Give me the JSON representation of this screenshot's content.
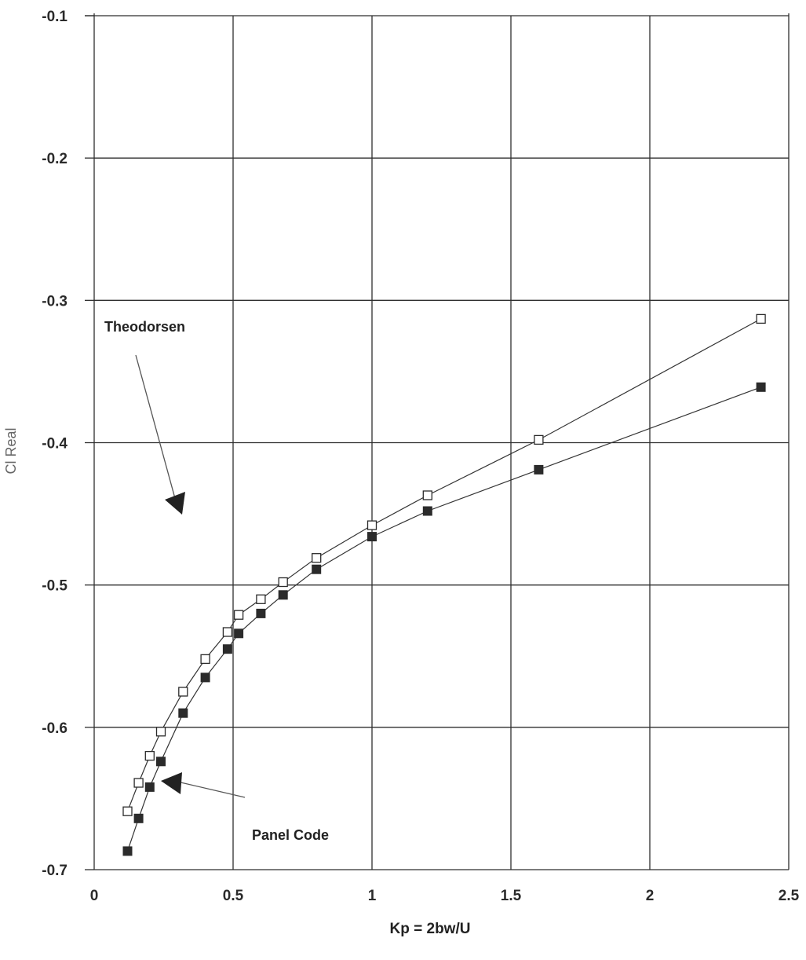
{
  "chart_data": {
    "type": "line",
    "title": "",
    "xlabel": "Kp = 2bw/U",
    "ylabel": "Cl Real",
    "xlim": [
      0,
      2.5
    ],
    "ylim": [
      -0.7,
      -0.1
    ],
    "x_ticks": [
      "0",
      "0.5",
      "1",
      "1.5",
      "2",
      "2.5"
    ],
    "y_ticks": [
      "-0.1",
      "-0.2",
      "-0.3",
      "-0.4",
      "-0.5",
      "-0.6",
      "-0.7"
    ],
    "x_tick_values": [
      0,
      0.5,
      1,
      1.5,
      2,
      2.5
    ],
    "y_tick_values": [
      -0.1,
      -0.2,
      -0.3,
      -0.4,
      -0.5,
      -0.6,
      -0.7
    ],
    "grid": true,
    "series": [
      {
        "marker": "hollow-square",
        "color": "#333333",
        "x": [
          0.12,
          0.16,
          0.2,
          0.24,
          0.32,
          0.4,
          0.48,
          0.52,
          0.6,
          0.68,
          0.8,
          1.0,
          1.2,
          1.6,
          2.4
        ],
        "y": [
          -0.659,
          -0.639,
          -0.62,
          -0.603,
          -0.575,
          -0.552,
          -0.533,
          -0.521,
          -0.51,
          -0.498,
          -0.481,
          -0.458,
          -0.437,
          -0.398,
          -0.313
        ]
      },
      {
        "marker": "filled-square",
        "color": "#333333",
        "x": [
          0.12,
          0.16,
          0.2,
          0.24,
          0.32,
          0.4,
          0.48,
          0.52,
          0.6,
          0.68,
          0.8,
          1.0,
          1.2,
          1.6,
          2.4
        ],
        "y": [
          -0.687,
          -0.664,
          -0.642,
          -0.624,
          -0.59,
          -0.565,
          -0.545,
          -0.534,
          -0.52,
          -0.507,
          -0.489,
          -0.466,
          -0.448,
          -0.419,
          -0.361
        ]
      }
    ],
    "annotations": [
      {
        "text": "Theodorsen",
        "points_to": [
          0.32,
          -0.448
        ]
      },
      {
        "text": "Panel Code",
        "points_to": [
          0.24,
          -0.64
        ]
      }
    ]
  }
}
